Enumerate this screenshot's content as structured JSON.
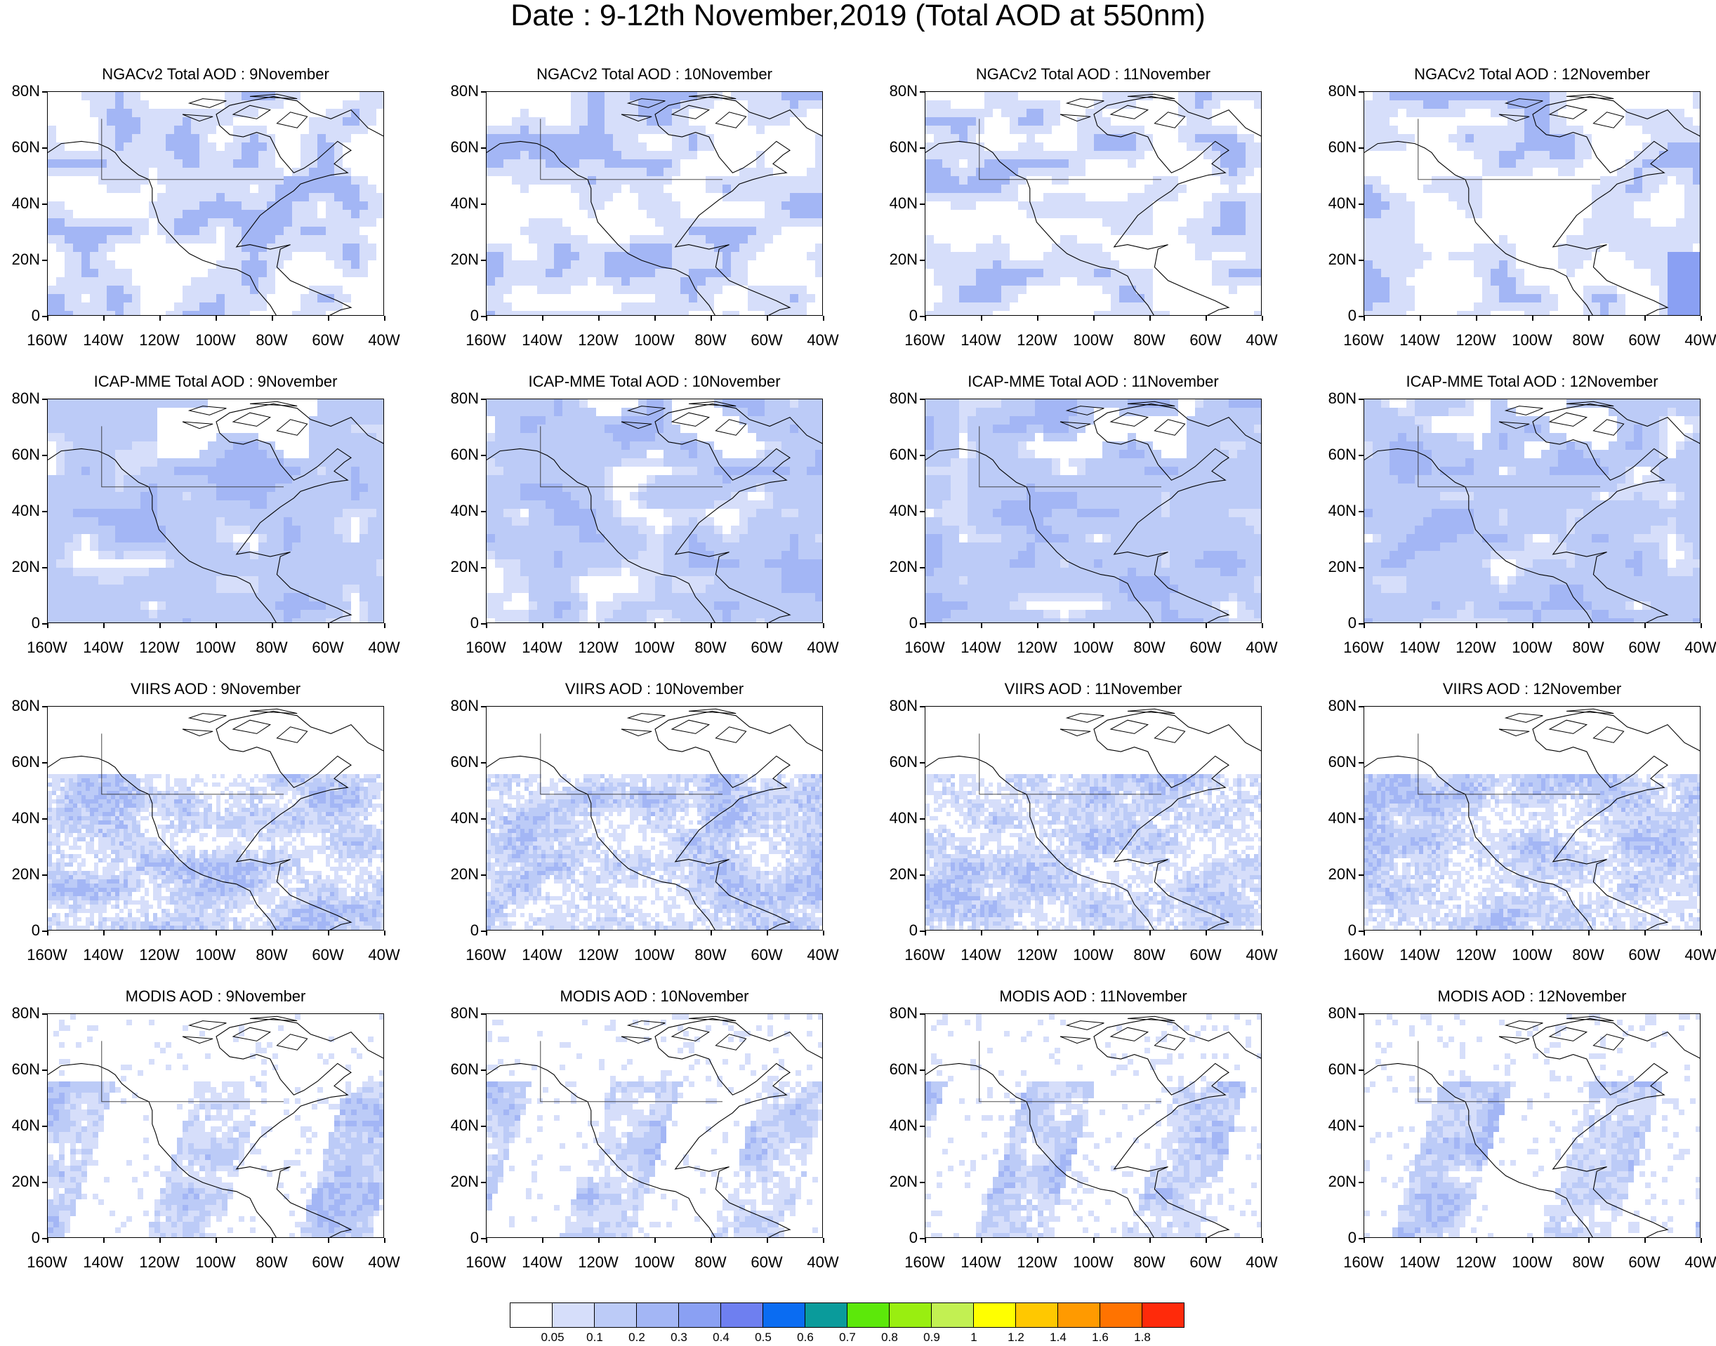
{
  "title": "Date : 9-12th November,2019 (Total AOD at 550nm)",
  "lat_labels": [
    "80N",
    "60N",
    "40N",
    "20N",
    "0"
  ],
  "lon_labels": [
    "160W",
    "140W",
    "120W",
    "100W",
    "80W",
    "60W",
    "40W"
  ],
  "panels": [
    {
      "title": "NGACv2 Total AOD : 9November",
      "source": "NGACv2",
      "date": "9November",
      "style": "model-light"
    },
    {
      "title": "NGACv2 Total AOD : 10November",
      "source": "NGACv2",
      "date": "10November",
      "style": "model-light"
    },
    {
      "title": "NGACv2 Total AOD : 11November",
      "source": "NGACv2",
      "date": "11November",
      "style": "model-light"
    },
    {
      "title": "NGACv2 Total AOD : 12November",
      "source": "NGACv2",
      "date": "12November",
      "style": "model-light"
    },
    {
      "title": "ICAP-MME Total AOD : 9November",
      "source": "ICAP-MME",
      "date": "9November",
      "style": "model-full"
    },
    {
      "title": "ICAP-MME Total AOD : 10November",
      "source": "ICAP-MME",
      "date": "10November",
      "style": "model-full"
    },
    {
      "title": "ICAP-MME Total AOD : 11November",
      "source": "ICAP-MME",
      "date": "11November",
      "style": "model-full"
    },
    {
      "title": "ICAP-MME Total AOD : 12November",
      "source": "ICAP-MME",
      "date": "12November",
      "style": "model-full"
    },
    {
      "title": "VIIRS AOD : 9November",
      "source": "VIIRS",
      "date": "9November",
      "style": "satellite"
    },
    {
      "title": "VIIRS AOD : 10November",
      "source": "VIIRS",
      "date": "10November",
      "style": "satellite"
    },
    {
      "title": "VIIRS AOD : 11November",
      "source": "VIIRS",
      "date": "11November",
      "style": "satellite"
    },
    {
      "title": "VIIRS AOD : 12November",
      "source": "VIIRS",
      "date": "12November",
      "style": "satellite"
    },
    {
      "title": "MODIS AOD : 9November",
      "source": "MODIS",
      "date": "9November",
      "style": "swath"
    },
    {
      "title": "MODIS AOD : 10November",
      "source": "MODIS",
      "date": "10November",
      "style": "swath"
    },
    {
      "title": "MODIS AOD : 11November",
      "source": "MODIS",
      "date": "11November",
      "style": "swath"
    },
    {
      "title": "MODIS AOD : 12November",
      "source": "MODIS",
      "date": "12November",
      "style": "swath"
    }
  ],
  "colorbar": {
    "labels": [
      "0.05",
      "0.1",
      "0.2",
      "0.3",
      "0.4",
      "0.5",
      "0.6",
      "0.7",
      "0.8",
      "0.9",
      "1",
      "1.2",
      "1.4",
      "1.6",
      "1.8"
    ],
    "colors": [
      "#ffffff",
      "#d6defa",
      "#bccbf7",
      "#a3b6f5",
      "#8aa0f3",
      "#6e7ff0",
      "#0a6cf2",
      "#0a9b9b",
      "#5ce80a",
      "#99ee10",
      "#c2f052",
      "#ffff00",
      "#ffc800",
      "#ff9a00",
      "#ff7300",
      "#ff2a0a"
    ]
  }
}
